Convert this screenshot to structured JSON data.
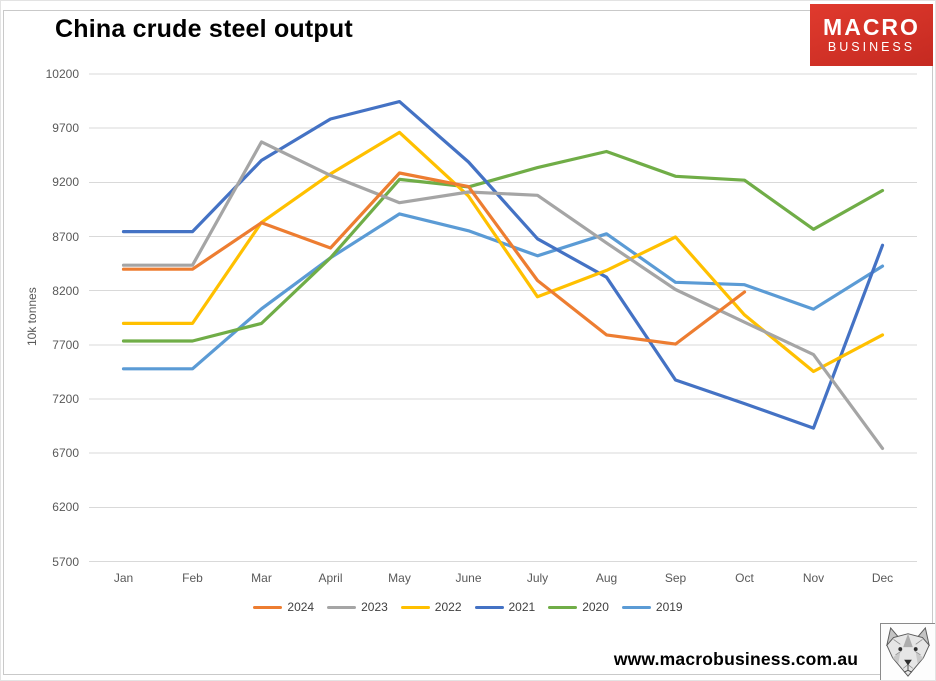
{
  "header": {
    "title": "China crude steel output",
    "logo": {
      "line1": "MACRO",
      "line2": "BUSINESS",
      "bg_top": "#e03a2e",
      "bg_bottom": "#c52a21"
    }
  },
  "footer": {
    "website": "www.macrobusiness.com.au"
  },
  "chart_data": {
    "type": "line",
    "title": "China crude steel output",
    "xlabel": "",
    "ylabel": "10k tonnes",
    "ylim": [
      5700,
      10200
    ],
    "ytick_step": 500,
    "grid": true,
    "grid_color": "#D9D9D9",
    "legend_position": "bottom",
    "categories": [
      "Jan",
      "Feb",
      "Mar",
      "April",
      "May",
      "June",
      "July",
      "Aug",
      "Sep",
      "Oct",
      "Nov",
      "Dec"
    ],
    "series": [
      {
        "name": "2024",
        "color": "#ED7D31",
        "values": [
          8398,
          8398,
          8827,
          8594,
          9286,
          9161,
          8294,
          7792,
          7707,
          8188,
          null,
          null
        ]
      },
      {
        "name": "2023",
        "color": "#A5A5A5",
        "values": [
          8435,
          8435,
          9573,
          9264,
          9012,
          9111,
          9080,
          8641,
          8211,
          7909,
          7610,
          6744
        ]
      },
      {
        "name": "2022",
        "color": "#FFC000",
        "values": [
          7898,
          7898,
          8830,
          9278,
          9661,
          9073,
          8143,
          8387,
          8695,
          7976,
          7454,
          7792
        ]
      },
      {
        "name": "2021",
        "color": "#4472C4",
        "values": [
          8745,
          8745,
          9402,
          9785,
          9945,
          9388,
          8679,
          8324,
          7375,
          7158,
          6931,
          8619
        ]
      },
      {
        "name": "2020",
        "color": "#70AD47",
        "values": [
          7735,
          7735,
          7898,
          8503,
          9227,
          9158,
          9336,
          9485,
          9256,
          9220,
          8766,
          9125
        ]
      },
      {
        "name": "2019",
        "color": "#5B9BD5",
        "values": [
          7479,
          7479,
          8033,
          8503,
          8909,
          8753,
          8522,
          8725,
          8277,
          8255,
          8029,
          8427
        ]
      }
    ]
  }
}
